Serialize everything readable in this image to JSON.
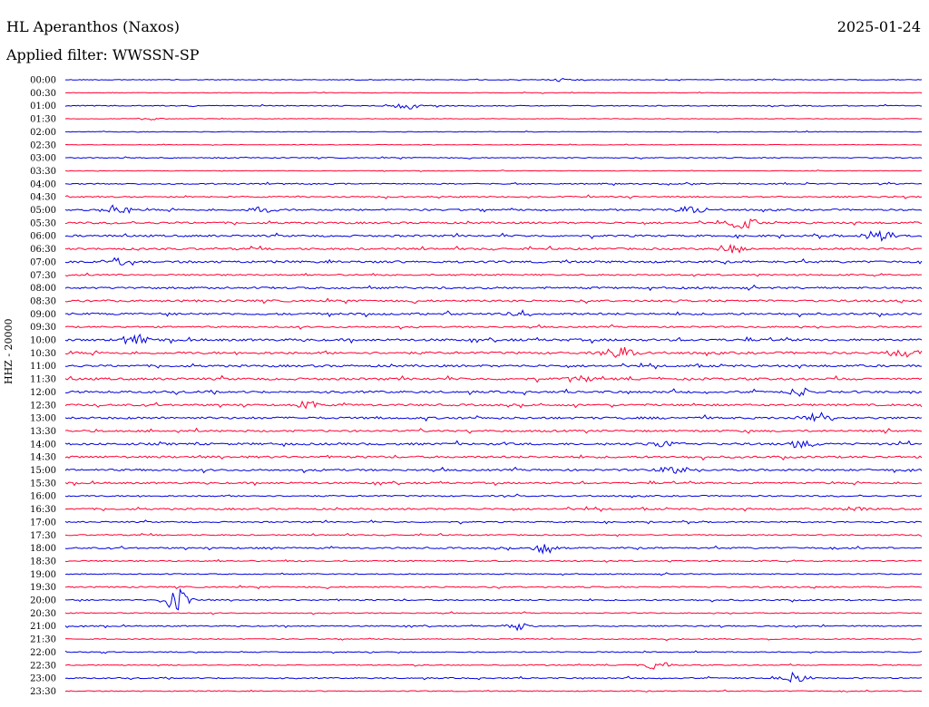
{
  "header": {
    "station": "HL Aperanthos (Naxos)",
    "date": "2025-01-24",
    "filter": "Applied filter: WWSSN-SP"
  },
  "colors": {
    "odd": "#0000e0",
    "even": "#ff0033"
  },
  "chart_data": {
    "type": "line",
    "title": "HL Aperanthos (Naxos)",
    "ylabel": "HHZ - 20000",
    "tick_labels": [
      "00:00",
      "00:30",
      "01:00",
      "01:30",
      "02:00",
      "02:30",
      "03:00",
      "03:30",
      "04:00",
      "04:30",
      "05:00",
      "05:30",
      "06:00",
      "06:30",
      "07:00",
      "07:30",
      "08:00",
      "08:30",
      "09:00",
      "09:30",
      "10:00",
      "10:30",
      "11:00",
      "11:30",
      "12:00",
      "12:30",
      "13:00",
      "13:30",
      "14:00",
      "14:30",
      "15:00",
      "15:30",
      "16:00",
      "16:30",
      "17:00",
      "17:30",
      "18:00",
      "18:30",
      "19:00",
      "19:30",
      "20:00",
      "20:30",
      "21:00",
      "21:30",
      "22:00",
      "22:30",
      "23:00",
      "23:30"
    ],
    "noise": [
      0.4,
      0.3,
      0.5,
      0.3,
      0.3,
      0.3,
      0.5,
      0.3,
      0.6,
      0.7,
      0.9,
      1.0,
      1.0,
      1.0,
      1.1,
      0.8,
      1.0,
      1.1,
      1.1,
      0.8,
      1.2,
      1.2,
      1.1,
      1.2,
      1.1,
      1.0,
      1.1,
      1.0,
      1.1,
      1.1,
      1.0,
      0.9,
      0.7,
      0.9,
      0.7,
      0.6,
      0.8,
      0.7,
      0.5,
      0.7,
      0.7,
      0.5,
      0.6,
      0.5,
      0.5,
      0.5,
      0.6,
      0.5
    ],
    "events": [
      {
        "row": 0,
        "x": 0.58,
        "amp": 2
      },
      {
        "row": 2,
        "x": 0.4,
        "amp": 4
      },
      {
        "row": 3,
        "x": 0.1,
        "amp": 1.5
      },
      {
        "row": 10,
        "x": 0.06,
        "amp": 6
      },
      {
        "row": 10,
        "x": 0.23,
        "amp": 4
      },
      {
        "row": 10,
        "x": 0.73,
        "amp": 6
      },
      {
        "row": 11,
        "x": 0.79,
        "amp": 8
      },
      {
        "row": 12,
        "x": 0.95,
        "amp": 10
      },
      {
        "row": 13,
        "x": 0.78,
        "amp": 6
      },
      {
        "row": 14,
        "x": 0.06,
        "amp": 5
      },
      {
        "row": 18,
        "x": 0.53,
        "amp": 4
      },
      {
        "row": 20,
        "x": 0.08,
        "amp": 7
      },
      {
        "row": 21,
        "x": 0.65,
        "amp": 9
      },
      {
        "row": 21,
        "x": 0.98,
        "amp": 7
      },
      {
        "row": 23,
        "x": 0.6,
        "amp": 4
      },
      {
        "row": 24,
        "x": 0.86,
        "amp": 5
      },
      {
        "row": 25,
        "x": 0.28,
        "amp": 5
      },
      {
        "row": 26,
        "x": 0.88,
        "amp": 7
      },
      {
        "row": 28,
        "x": 0.7,
        "amp": 5
      },
      {
        "row": 28,
        "x": 0.86,
        "amp": 5
      },
      {
        "row": 30,
        "x": 0.71,
        "amp": 5
      },
      {
        "row": 33,
        "x": 0.92,
        "amp": 4
      },
      {
        "row": 36,
        "x": 0.56,
        "amp": 6
      },
      {
        "row": 40,
        "x": 0.13,
        "amp": 14
      },
      {
        "row": 42,
        "x": 0.53,
        "amp": 4
      },
      {
        "row": 45,
        "x": 0.69,
        "amp": 5
      },
      {
        "row": 46,
        "x": 0.85,
        "amp": 6
      }
    ]
  }
}
